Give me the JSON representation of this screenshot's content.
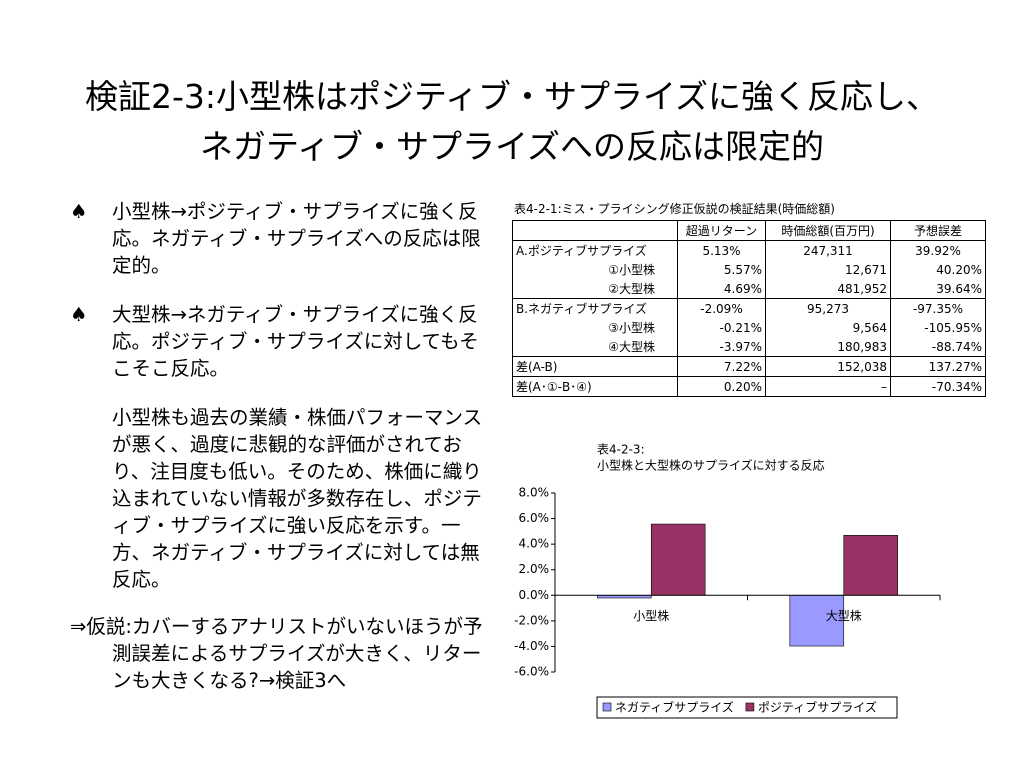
{
  "title": [
    "検証2-3:小型株はポジティブ・サプライズに強く反応し、",
    "ネガティブ・サプライズへの反応は限定的"
  ],
  "bullet_symbol": "♠",
  "bullets": [
    "小型株→ポジティブ・サプライズに強く反応。ネガティブ・サプライズへの反応は限定的。",
    "大型株→ネガティブ・サプライズに強く反応。ポジティブ・サプライズに対してもそこそこ反応。"
  ],
  "explanation": "小型株も過去の業績・株価パフォーマンスが悪く、過度に悲観的な評価がされており、注目度も低い。そのため、株価に織り込まれていない情報が多数存在し、ポジティブ・サプライズに強い反応を示す。一方、ネガティブ・サプライズに対しては無反応。",
  "hypothesis": "⇒仮説:カバーするアナリストがいないほうが予測誤差によるサプライズが大きく、リターンも大きくなる?→検証3へ",
  "table": {
    "title": "表4-2-1:ミス・プライシング修正仮説の検証結果(時価総額)",
    "header": [
      "超過リターン",
      "時価総額(百万円)",
      "予想誤差"
    ],
    "rows": [
      [
        "A.ポジティブサプライズ",
        "5.13%",
        "247,311",
        "39.92%"
      ],
      [
        "①小型株",
        "5.57%",
        "12,671",
        "40.20%"
      ],
      [
        "②大型株",
        "4.69%",
        "481,952",
        "39.64%"
      ],
      [
        "B.ネガティブサプライズ",
        "-2.09%",
        "95,273",
        "-97.35%"
      ],
      [
        "③小型株",
        "-0.21%",
        "9,564",
        "-105.95%"
      ],
      [
        "④大型株",
        "-3.97%",
        "180,983",
        "-88.74%"
      ],
      [
        "差(A-B)",
        "7.22%",
        "152,038",
        "137.27%"
      ],
      [
        "差(A･①-B･④)",
        "0.20%",
        "–",
        "-70.34%"
      ]
    ]
  },
  "chart_data": {
    "type": "bar",
    "title": [
      "表4-2-3:",
      "小型株と大型株のサプライズに対する反応"
    ],
    "categories": [
      "小型株",
      "大型株"
    ],
    "series": [
      {
        "name": "ネガティブサプライズ",
        "color": "#9999ff",
        "values": [
          -0.21,
          -3.97
        ]
      },
      {
        "name": "ポジティブサプライズ",
        "color": "#993366",
        "values": [
          5.57,
          4.69
        ]
      }
    ],
    "ylim": [
      -6,
      8
    ],
    "yticks": [
      {
        "value": 8,
        "label": "8.0%"
      },
      {
        "value": 6,
        "label": "6.0%"
      },
      {
        "value": 4,
        "label": "4.0%"
      },
      {
        "value": 2,
        "label": "2.0%"
      },
      {
        "value": 0,
        "label": "0.0%"
      },
      {
        "value": -2,
        "label": "-2.0%"
      },
      {
        "value": -4,
        "label": "-4.0%"
      },
      {
        "value": -6,
        "label": "-6.0%"
      }
    ],
    "legend": "bottom"
  }
}
